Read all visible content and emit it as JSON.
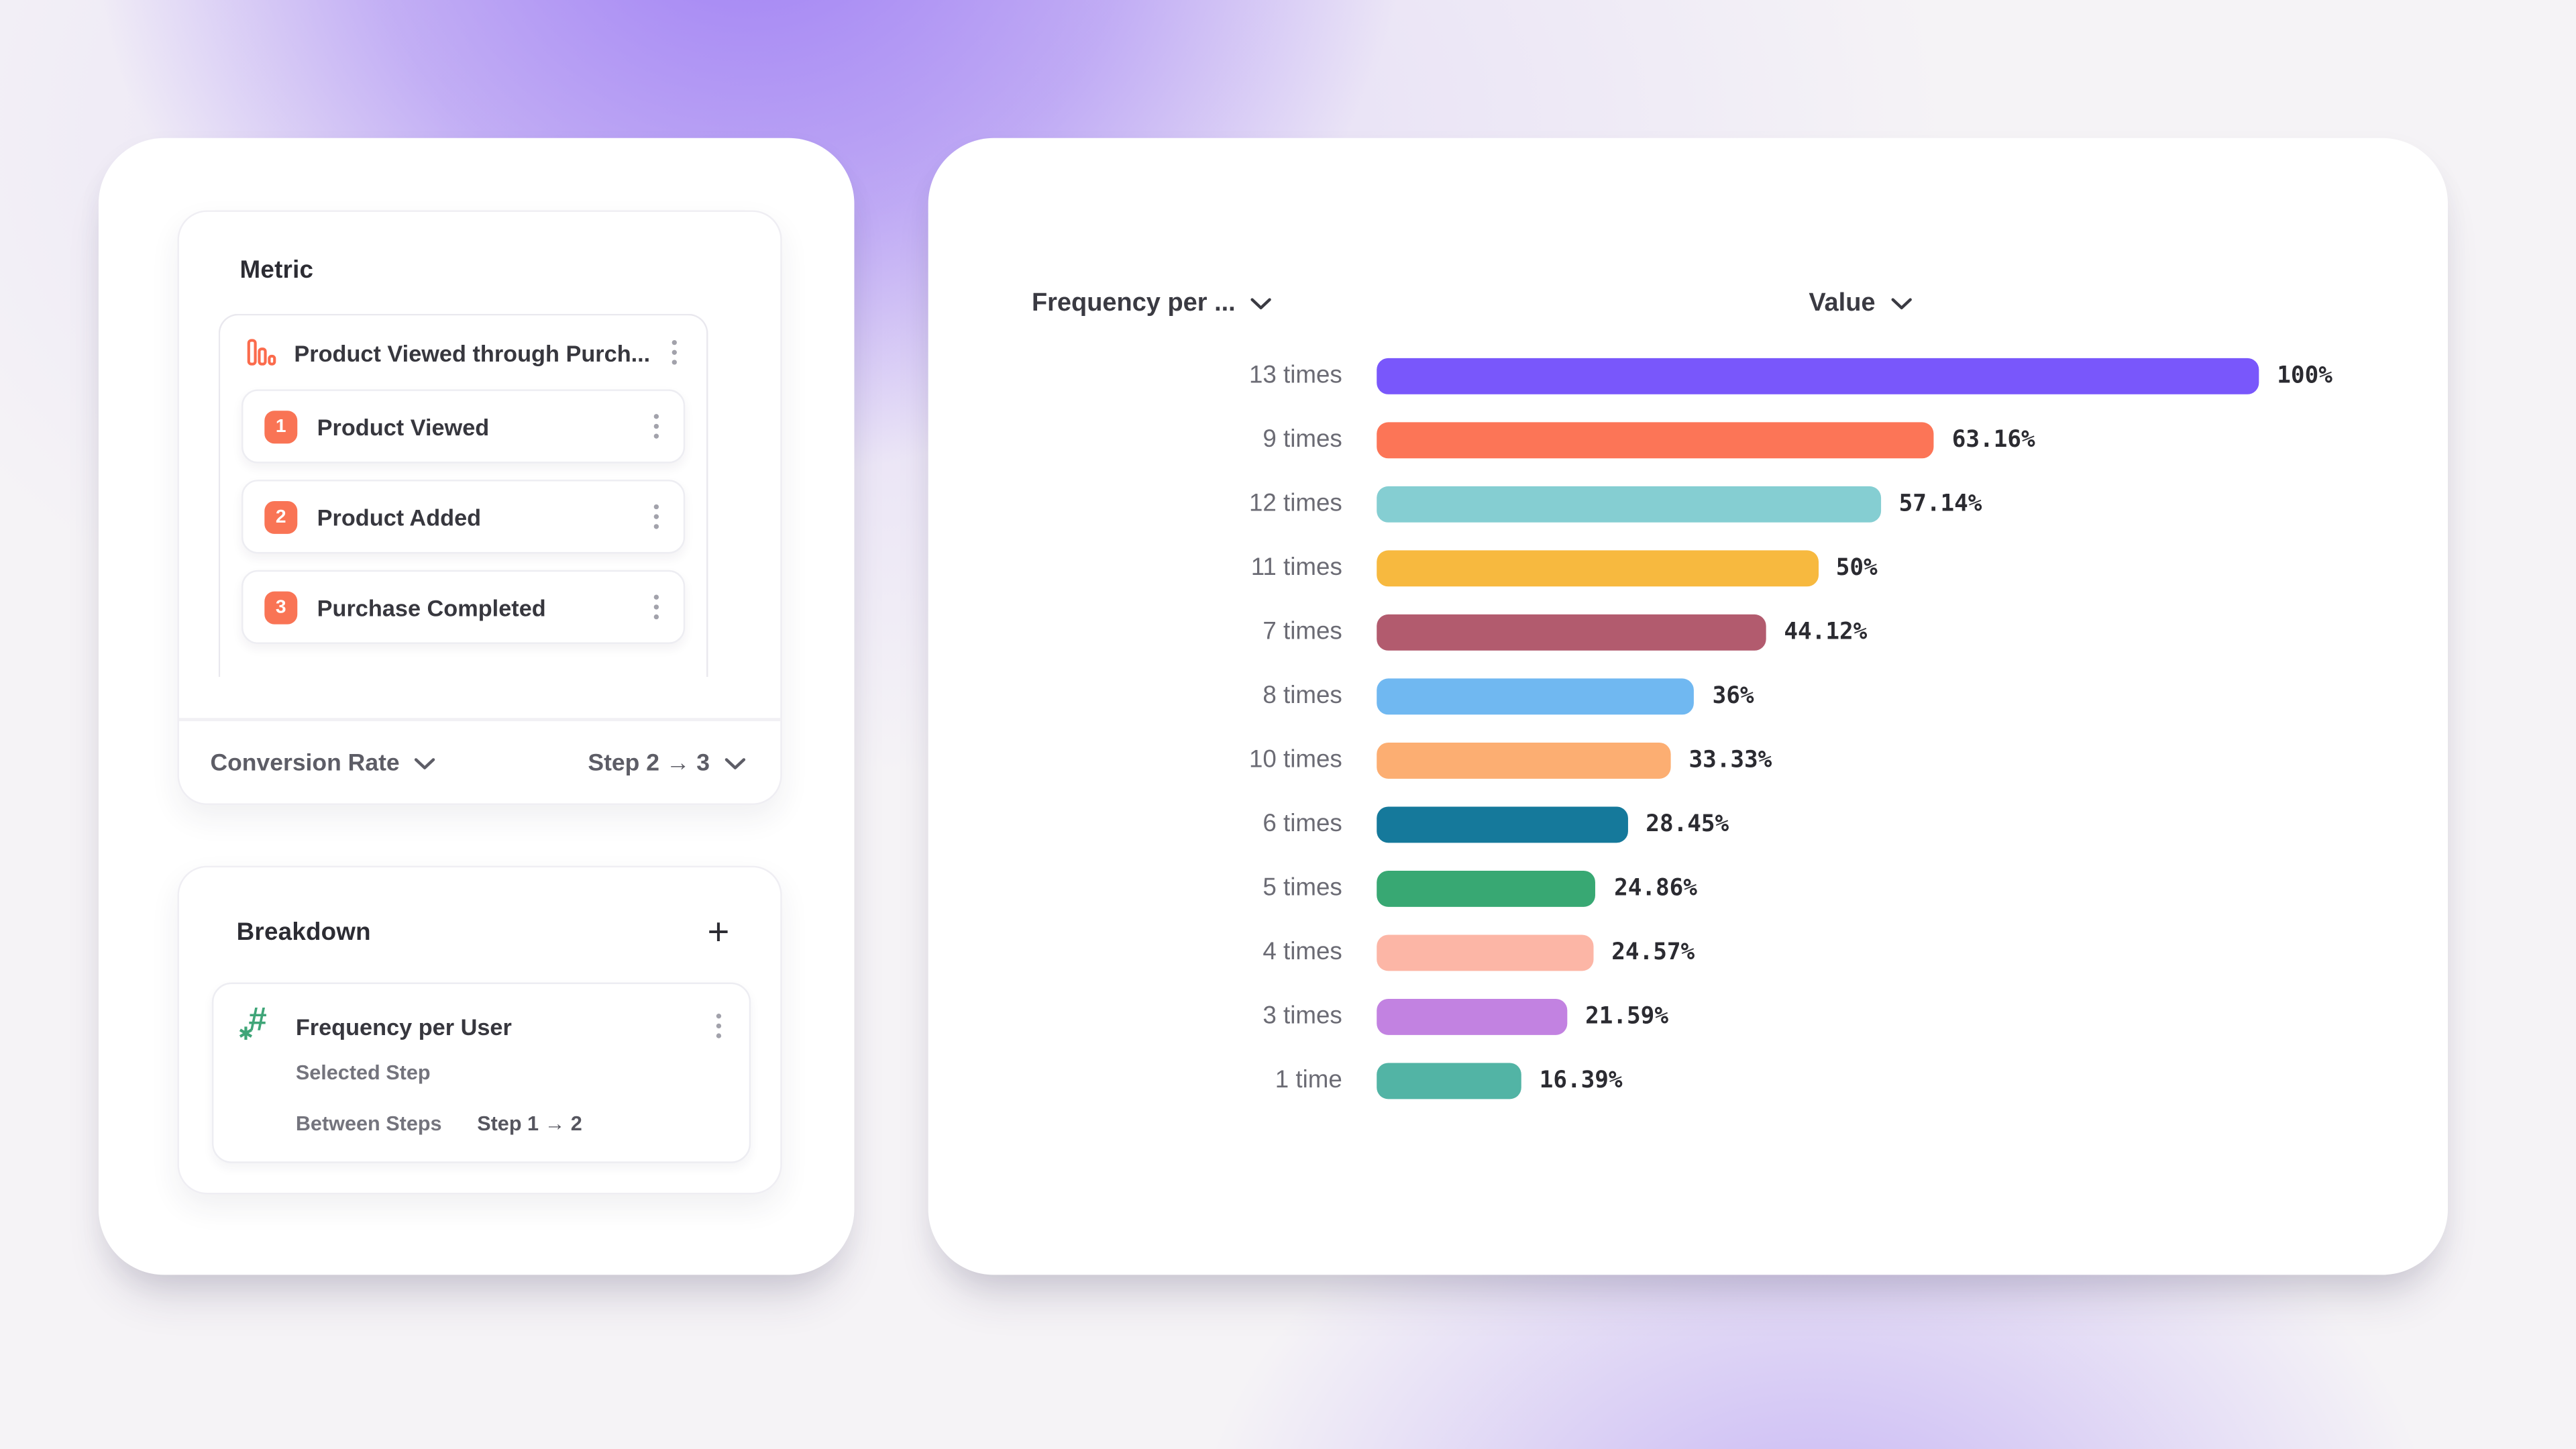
{
  "theme": {
    "accent_orange": "#f97455",
    "accent_green": "#3fa578",
    "background_glow": "#926df3",
    "card_bg": "#ffffff",
    "text_dark": "#2b2b31",
    "text_gray": "#6b6b74"
  },
  "left_panel": {
    "metric": {
      "title": "Metric",
      "funnel": {
        "name": "Product Viewed through Purch...",
        "steps": [
          {
            "number": "1",
            "label": "Product Viewed"
          },
          {
            "number": "2",
            "label": "Product Added"
          },
          {
            "number": "3",
            "label": "Purchase Completed"
          }
        ]
      },
      "measure_dropdown": "Conversion Rate",
      "step_range_dropdown": "Step 2 → 3"
    },
    "breakdown": {
      "title": "Breakdown",
      "add_icon": "+",
      "item": {
        "name": "Frequency per User",
        "row_selected_step": "Selected Step",
        "row_between_steps": "Between Steps",
        "row_between_steps_value": "Step 1 → 2"
      }
    }
  },
  "chart_data": {
    "type": "bar",
    "orientation": "horizontal",
    "x_header": "Frequency per ...",
    "value_header": "Value",
    "categories": [
      "13 times",
      "9 times",
      "12 times",
      "11 times",
      "7 times",
      "8 times",
      "10 times",
      "6 times",
      "5 times",
      "4 times",
      "3 times",
      "1 time"
    ],
    "values": [
      100,
      63.16,
      57.14,
      50,
      44.12,
      36,
      33.33,
      28.45,
      24.86,
      24.57,
      21.59,
      16.39
    ],
    "value_labels": [
      "100%",
      "63.16%",
      "57.14%",
      "50%",
      "44.12%",
      "36%",
      "33.33%",
      "28.45%",
      "24.86%",
      "24.57%",
      "21.59%",
      "16.39%"
    ],
    "bar_colors": [
      "#7957fb",
      "#fc7557",
      "#85ced2",
      "#f7b93f",
      "#b25b6e",
      "#70b8f1",
      "#fcae72",
      "#15799b",
      "#38a873",
      "#fcb6a6",
      "#c282e1",
      "#52b4a5"
    ],
    "xlim": [
      0,
      100
    ],
    "grid": false,
    "legend": false
  }
}
